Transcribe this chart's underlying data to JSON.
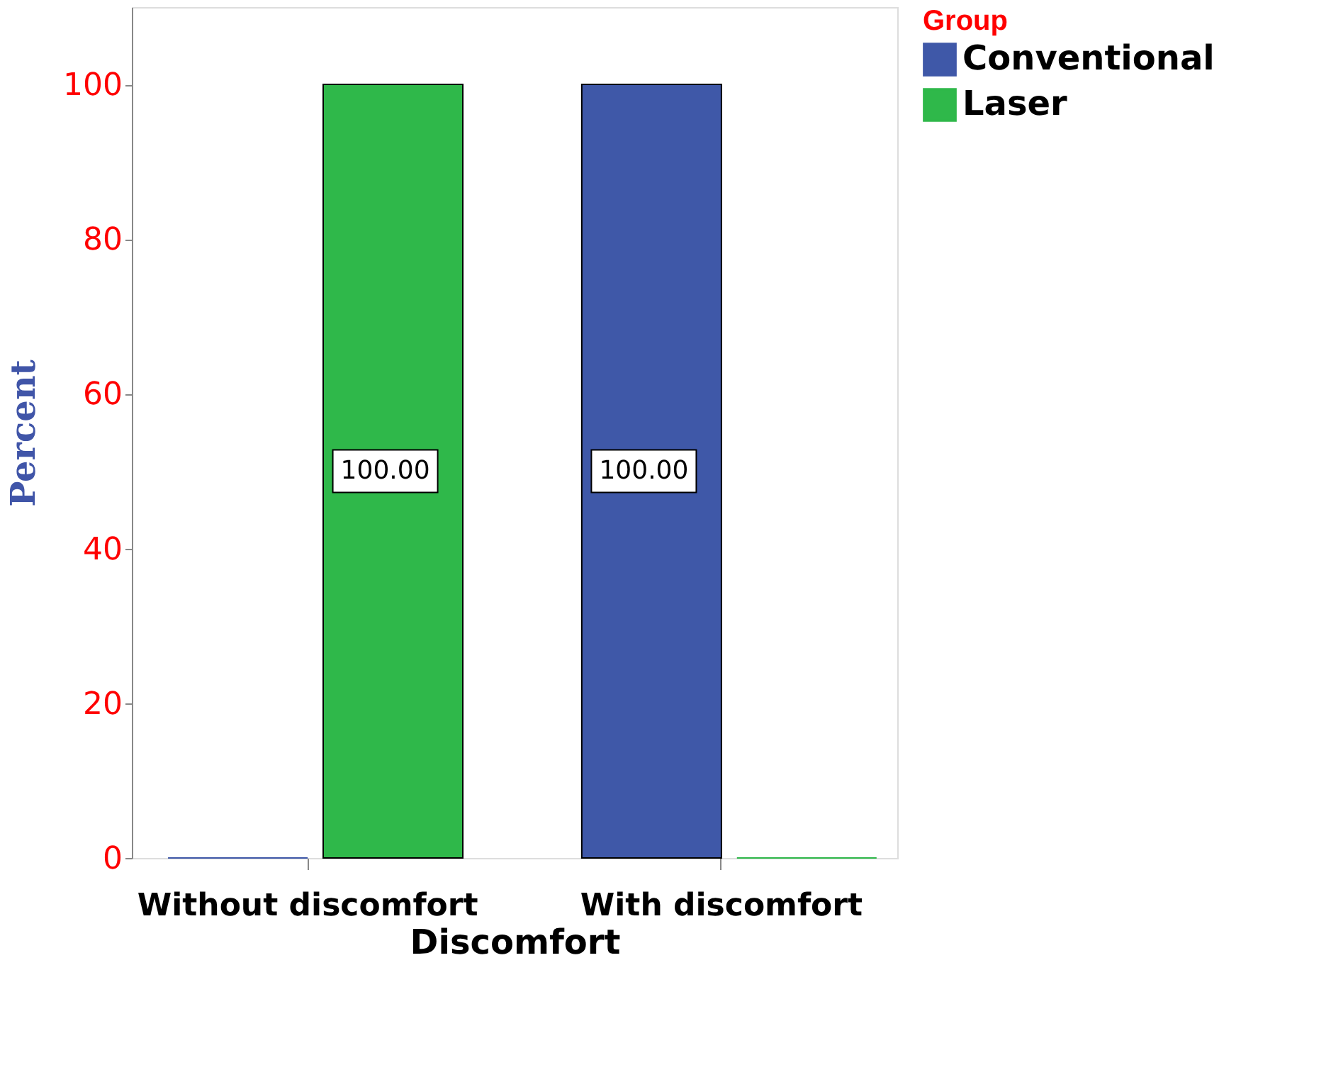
{
  "chart_data": {
    "type": "bar",
    "xlabel": "Discomfort",
    "ylabel": "Percent",
    "legend_title": "Group",
    "categories": [
      "Without discomfort",
      "With discomfort"
    ],
    "series": [
      {
        "name": "Conventional",
        "color": "#3f58a8",
        "values": [
          0,
          100
        ],
        "value_labels": [
          null,
          "100.00"
        ]
      },
      {
        "name": "Laser",
        "color": "#2fb84a",
        "values": [
          100,
          0
        ],
        "value_labels": [
          "100.00",
          null
        ]
      }
    ],
    "ylim": [
      0,
      110
    ],
    "yticks": [
      0,
      20,
      40,
      60,
      80,
      100
    ],
    "grid": false,
    "legend": "top right"
  }
}
